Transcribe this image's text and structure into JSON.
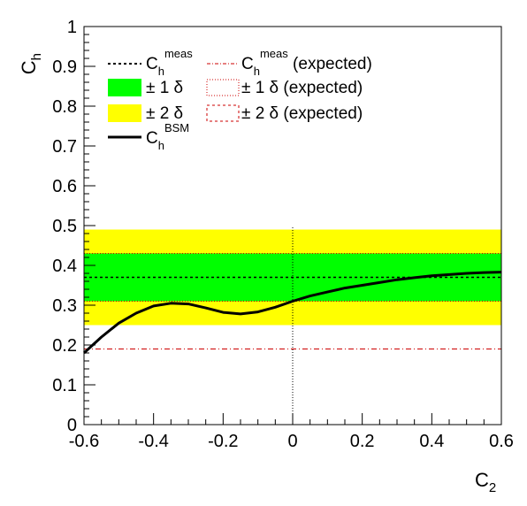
{
  "chart_data": {
    "type": "line",
    "xlabel": {
      "main": "C",
      "sub": "2"
    },
    "ylabel": {
      "main": "C",
      "sub": "h"
    },
    "xlim": [
      -0.6,
      0.6
    ],
    "ylim": [
      0,
      1
    ],
    "x_ticks": [
      "-0.6",
      "-0.4",
      "-0.2",
      "0",
      "0.2",
      "0.4",
      "0.6"
    ],
    "y_ticks": [
      "0",
      "0.1",
      "0.2",
      "0.3",
      "0.4",
      "0.5",
      "0.6",
      "0.7",
      "0.8",
      "0.9",
      "1"
    ],
    "measured": {
      "value": 0.37,
      "band_1sigma": [
        0.31,
        0.43
      ],
      "band_2sigma": [
        0.25,
        0.49
      ]
    },
    "expected": {
      "value": 0.19,
      "band_1sigma": [
        0.31,
        0.43
      ],
      "band_2sigma": [
        0.25,
        0.49
      ]
    },
    "reference_line_x": 0,
    "bsm_curve": {
      "x": [
        -0.6,
        -0.55,
        -0.5,
        -0.45,
        -0.4,
        -0.35,
        -0.3,
        -0.25,
        -0.2,
        -0.15,
        -0.1,
        -0.05,
        0,
        0.05,
        0.1,
        0.15,
        0.2,
        0.25,
        0.3,
        0.35,
        0.4,
        0.45,
        0.5,
        0.55,
        0.6
      ],
      "y": [
        0.18,
        0.22,
        0.255,
        0.28,
        0.298,
        0.305,
        0.303,
        0.293,
        0.282,
        0.278,
        0.283,
        0.295,
        0.31,
        0.323,
        0.333,
        0.343,
        0.35,
        0.357,
        0.364,
        0.369,
        0.374,
        0.377,
        0.38,
        0.382,
        0.383
      ]
    },
    "colors": {
      "band_1sigma": "#00ff00",
      "band_2sigma": "#ffff00",
      "measured_line": "#000000",
      "expected_line": "#cc0000",
      "curve": "#000000"
    },
    "legend": {
      "placement": "top",
      "entries": [
        {
          "id": "meas",
          "main": "C",
          "sub": "h",
          "sup": "meas",
          "suffix": ""
        },
        {
          "id": "s1",
          "text": "± 1 δ"
        },
        {
          "id": "s2",
          "text": "± 2 δ"
        },
        {
          "id": "bsm",
          "main": "C",
          "sub": "h",
          "sup": "BSM",
          "suffix": ""
        },
        {
          "id": "meas_exp",
          "main": "C",
          "sub": "h",
          "sup": "meas",
          "suffix": " (expected)"
        },
        {
          "id": "s1_exp",
          "text": "± 1 δ (expected)"
        },
        {
          "id": "s2_exp",
          "text": "± 2 δ (expected)"
        }
      ]
    }
  }
}
